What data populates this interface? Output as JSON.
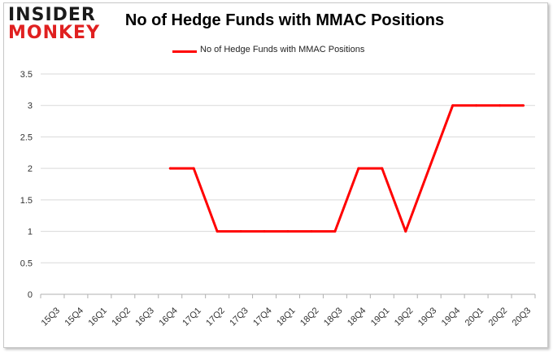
{
  "brand": {
    "line1": "INSIDER",
    "line2": "MONKEY"
  },
  "colors": {
    "line": "#ff0000",
    "grid": "#d9d9d9",
    "brand_red": "#e02020"
  },
  "chart_data": {
    "type": "line",
    "title": "No of Hedge Funds with MMAC Positions",
    "xlabel": "",
    "ylabel": "",
    "ylim": [
      0,
      3.5
    ],
    "yticks": [
      0,
      0.5,
      1,
      1.5,
      2,
      2.5,
      3,
      3.5
    ],
    "ytick_labels": [
      "0",
      "0.5",
      "1",
      "1.5",
      "2",
      "2.5",
      "3",
      "3.5"
    ],
    "grid": true,
    "legend_position": "top-center",
    "categories": [
      "15Q3",
      "15Q4",
      "16Q1",
      "16Q2",
      "16Q3",
      "16Q4",
      "17Q1",
      "17Q2",
      "17Q3",
      "17Q4",
      "18Q1",
      "18Q2",
      "18Q3",
      "18Q4",
      "19Q1",
      "19Q2",
      "19Q3",
      "19Q4",
      "20Q1",
      "20Q2",
      "20Q3"
    ],
    "series": [
      {
        "name": "No of Hedge Funds with MMAC Positions",
        "values": [
          null,
          null,
          null,
          null,
          null,
          2,
          2,
          1,
          1,
          1,
          1,
          1,
          1,
          2,
          2,
          1,
          2,
          3,
          3,
          3,
          3
        ]
      }
    ]
  }
}
